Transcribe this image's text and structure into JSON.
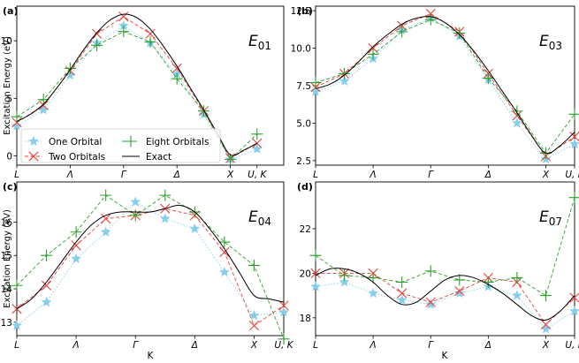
{
  "figure": {
    "shared_xlabel": "K",
    "shared_ylabel": "Excitation Energy (eV)",
    "x_tick_labels": [
      "L",
      "Λ",
      "Γ",
      "Δ",
      "X",
      "U, K"
    ],
    "legend": [
      {
        "name": "One Orbital",
        "color": "#87CEEB",
        "marker": "star",
        "line": "dotted"
      },
      {
        "name": "Two Orbitals",
        "color": "#e8403a",
        "marker": "x",
        "line": "dashed"
      },
      {
        "name": "Eight Orbitals",
        "color": "#2ca02c",
        "marker": "plus",
        "line": "dashed"
      },
      {
        "name": "Exact",
        "color": "#000000",
        "marker": "none",
        "line": "solid"
      }
    ]
  },
  "chart_data": [
    {
      "type": "line",
      "panel": "(a)",
      "title": "E01",
      "title_main": "E",
      "title_sub": "01",
      "legend_in_panel": true,
      "xlabel": "",
      "ylabel": "Excitation Energy (eV)",
      "ylim": [
        -0.8,
        13.0
      ],
      "yticks": [
        0,
        5,
        10
      ],
      "ytick_labels": [
        "0",
        "5",
        "10"
      ],
      "x": [
        0,
        1,
        2,
        3,
        4,
        5,
        6,
        7,
        8,
        9,
        10
      ],
      "series": [
        {
          "name": "One Orbital",
          "values": [
            2.6,
            4.0,
            7.0,
            9.8,
            11.3,
            9.8,
            7.1,
            3.6,
            -0.3,
            0.6,
            null
          ]
        },
        {
          "name": "Two Orbitals",
          "values": [
            2.9,
            4.4,
            7.4,
            10.6,
            12.1,
            10.6,
            7.6,
            3.9,
            -0.2,
            1.1,
            null
          ]
        },
        {
          "name": "Eight Orbitals",
          "values": [
            3.4,
            4.9,
            7.6,
            9.6,
            10.8,
            9.9,
            6.7,
            3.9,
            -0.3,
            1.9,
            null
          ]
        },
        {
          "name": "Exact",
          "x": [
            0,
            0.5,
            1,
            1.5,
            2,
            2.5,
            3,
            3.5,
            4,
            4.5,
            5,
            5.5,
            6,
            6.5,
            7,
            7.5,
            8,
            8.5,
            9
          ],
          "values": [
            3.0,
            3.6,
            4.5,
            5.9,
            7.5,
            9.2,
            10.7,
            11.8,
            12.3,
            12.0,
            11.0,
            9.5,
            7.8,
            5.9,
            4.0,
            2.0,
            0.1,
            0.5,
            1.1
          ]
        }
      ]
    },
    {
      "type": "line",
      "panel": "(b)",
      "title": "E03",
      "title_main": "E",
      "title_sub": "03",
      "legend_in_panel": false,
      "xlabel": "",
      "ylabel": "",
      "ylim": [
        2.2,
        12.8
      ],
      "yticks": [
        2.5,
        5.0,
        7.5,
        10.0,
        12.5
      ],
      "ytick_labels": [
        "2.5",
        "5.0",
        "7.5",
        "10.0",
        "12.5"
      ],
      "x": [
        0,
        1,
        2,
        3,
        4,
        5,
        6,
        7,
        8,
        9
      ],
      "series": [
        {
          "name": "One Orbital",
          "values": [
            7.1,
            7.8,
            9.3,
            11.2,
            12.0,
            10.8,
            7.9,
            5.0,
            2.6,
            3.6
          ]
        },
        {
          "name": "Two Orbitals",
          "values": [
            7.4,
            8.3,
            10.0,
            11.5,
            12.3,
            11.1,
            8.3,
            5.5,
            2.8,
            4.1
          ]
        },
        {
          "name": "Eight Orbitals",
          "values": [
            7.7,
            8.3,
            9.6,
            11.1,
            11.9,
            11.0,
            8.0,
            5.8,
            3.0,
            5.6
          ]
        },
        {
          "name": "Exact",
          "x": [
            0,
            0.5,
            1,
            1.5,
            2,
            2.5,
            3,
            3.5,
            4,
            4.5,
            5,
            5.5,
            6,
            6.5,
            7,
            7.5,
            8,
            8.5,
            9
          ],
          "values": [
            7.3,
            7.6,
            8.2,
            9.1,
            10.1,
            10.9,
            11.6,
            12.0,
            12.1,
            11.7,
            10.9,
            9.8,
            8.5,
            7.1,
            5.7,
            4.2,
            3.0,
            3.5,
            4.4
          ]
        }
      ]
    },
    {
      "type": "line",
      "panel": "(c)",
      "title": "E04",
      "title_main": "E",
      "title_sub": "04",
      "legend_in_panel": false,
      "xlabel": "K",
      "ylabel": "Excitation Energy (eV)",
      "ylim": [
        12.6,
        17.2
      ],
      "yticks": [
        13,
        14,
        15,
        16
      ],
      "ytick_labels": [
        "13",
        "14",
        "15",
        "16"
      ],
      "x": [
        0,
        1,
        2,
        3,
        4,
        5,
        6,
        7,
        8,
        9
      ],
      "series": [
        {
          "name": "One Orbital",
          "values": [
            12.9,
            13.6,
            14.9,
            15.7,
            16.6,
            16.1,
            15.8,
            14.5,
            13.2,
            13.3
          ]
        },
        {
          "name": "Two Orbitals",
          "values": [
            13.4,
            14.1,
            15.3,
            16.1,
            16.2,
            16.4,
            16.2,
            15.1,
            12.9,
            13.5
          ]
        },
        {
          "name": "Eight Orbitals",
          "values": [
            14.1,
            15.0,
            15.7,
            16.8,
            16.2,
            16.8,
            16.3,
            15.4,
            14.7,
            12.5
          ]
        },
        {
          "name": "Exact",
          "x": [
            0,
            0.5,
            1,
            1.5,
            2,
            2.5,
            3,
            3.5,
            4,
            4.5,
            5,
            5.5,
            6,
            6.5,
            7,
            7.5,
            8,
            8.5,
            9
          ],
          "values": [
            13.4,
            13.7,
            14.2,
            14.8,
            15.4,
            15.9,
            16.2,
            16.3,
            16.3,
            16.3,
            16.4,
            16.5,
            16.3,
            15.8,
            15.2,
            14.5,
            13.8,
            13.7,
            13.6
          ]
        }
      ]
    },
    {
      "type": "line",
      "panel": "(d)",
      "title": "E07",
      "title_main": "E",
      "title_sub": "07",
      "legend_in_panel": false,
      "xlabel": "K",
      "ylabel": "",
      "ylim": [
        17.2,
        24.1
      ],
      "yticks": [
        18,
        20,
        22
      ],
      "ytick_labels": [
        "18",
        "20",
        "22"
      ],
      "x": [
        0,
        1,
        2,
        3,
        4,
        5,
        6,
        7,
        8,
        9
      ],
      "series": [
        {
          "name": "One Orbital",
          "values": [
            19.4,
            19.6,
            19.1,
            18.8,
            18.6,
            19.1,
            19.4,
            19.0,
            17.5,
            18.3
          ]
        },
        {
          "name": "Two Orbitals",
          "values": [
            20.0,
            20.0,
            20.0,
            19.1,
            18.7,
            19.2,
            19.8,
            19.6,
            17.7,
            18.9
          ]
        },
        {
          "name": "Eight Orbitals",
          "values": [
            20.8,
            19.9,
            19.8,
            19.6,
            20.1,
            19.7,
            19.6,
            19.8,
            19.0,
            23.4
          ]
        },
        {
          "name": "Exact",
          "x": [
            0,
            0.5,
            1,
            1.5,
            2,
            2.5,
            3,
            3.5,
            4,
            4.5,
            5,
            5.5,
            6,
            6.5,
            7,
            7.5,
            8,
            8.5,
            9
          ],
          "values": [
            19.9,
            20.2,
            20.2,
            20.0,
            19.6,
            19.0,
            18.6,
            18.7,
            19.2,
            19.7,
            19.9,
            19.8,
            19.5,
            19.1,
            18.6,
            18.1,
            17.9,
            18.3,
            19.0
          ]
        }
      ]
    }
  ]
}
